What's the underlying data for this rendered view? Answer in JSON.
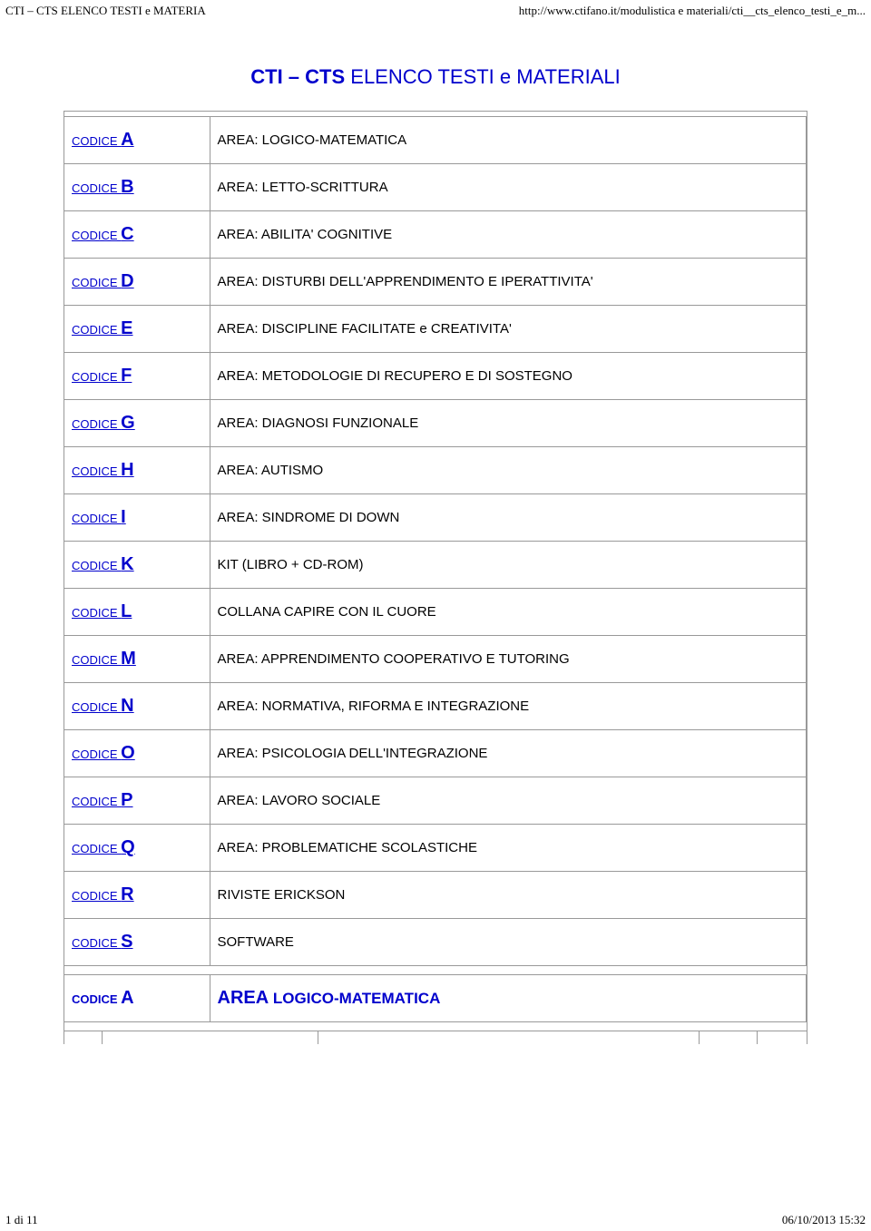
{
  "header": {
    "left": "CTI – CTS ELENCO TESTI e MATERIA",
    "right": "http://www.ctifano.it/modulistica e materiali/cti__cts_elenco_testi_e_m..."
  },
  "title_pre": "CTI – CTS ",
  "title_post": "ELENCO TESTI e MATERIALI",
  "code_prefix": "CODICE ",
  "rows": [
    {
      "letter": "A",
      "area": "AREA: LOGICO-MATEMATICA"
    },
    {
      "letter": "B",
      "area": "AREA: LETTO-SCRITTURA"
    },
    {
      "letter": "C",
      "area": "AREA: ABILITA' COGNITIVE"
    },
    {
      "letter": "D",
      "area": "AREA: DISTURBI DELL'APPRENDIMENTO E IPERATTIVITA'"
    },
    {
      "letter": "E",
      "area": "AREA: DISCIPLINE FACILITATE e CREATIVITA'"
    },
    {
      "letter": "F",
      "area": "AREA: METODOLOGIE DI RECUPERO E DI SOSTEGNO"
    },
    {
      "letter": "G",
      "area": "AREA: DIAGNOSI FUNZIONALE"
    },
    {
      "letter": "H",
      "area": "AREA: AUTISMO"
    },
    {
      "letter": "I",
      "area": "AREA: SINDROME DI DOWN"
    },
    {
      "letter": "K",
      "area": "KIT (LIBRO + CD-ROM)"
    },
    {
      "letter": "L",
      "area": "COLLANA CAPIRE CON IL CUORE"
    },
    {
      "letter": "M",
      "area": "AREA: APPRENDIMENTO COOPERATIVO E TUTORING"
    },
    {
      "letter": "N",
      "area": "AREA: NORMATIVA, RIFORMA E INTEGRAZIONE"
    },
    {
      "letter": "O",
      "area": "AREA: PSICOLOGIA DELL'INTEGRAZIONE"
    },
    {
      "letter": "P",
      "area": "AREA: LAVORO SOCIALE"
    },
    {
      "letter": "Q",
      "area": "AREA: PROBLEMATICHE SCOLASTICHE"
    },
    {
      "letter": "R",
      "area": "RIVISTE ERICKSON"
    },
    {
      "letter": "S",
      "area": "SOFTWARE"
    }
  ],
  "section2": {
    "letter": "A",
    "area_prefix": "AREA",
    "area_rest": " LOGICO-MATEMATICA"
  },
  "footer": {
    "left": "1 di 11",
    "right": "06/10/2013 15:32"
  },
  "colors": {
    "blue": "#0000cc",
    "border": "#999999"
  }
}
